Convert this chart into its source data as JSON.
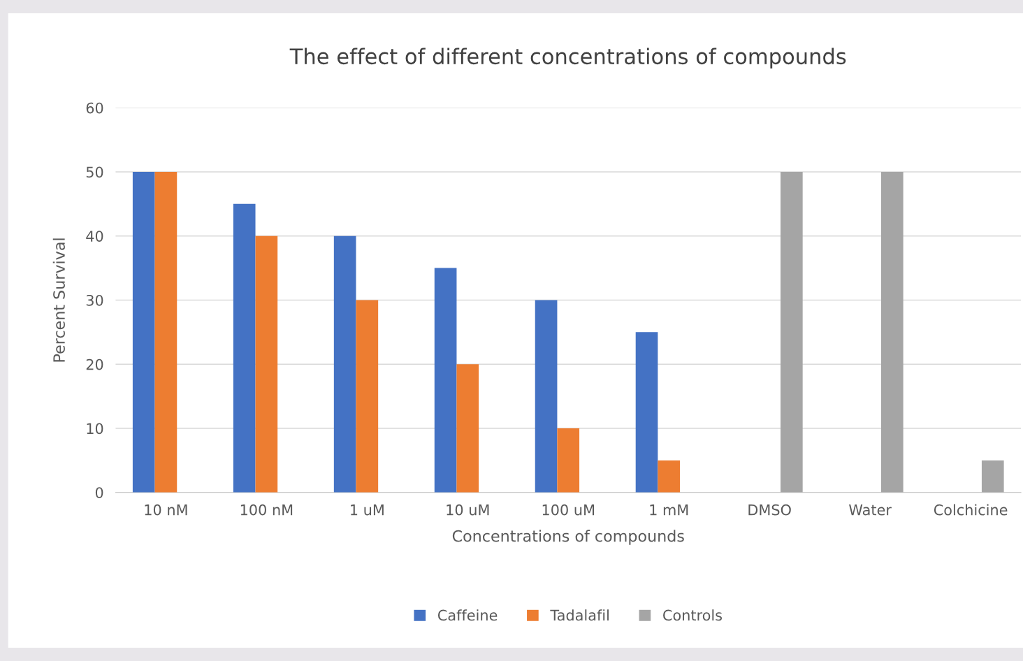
{
  "chart_data": {
    "type": "bar",
    "title": "The effect of different concentrations of compounds",
    "xlabel": "Concentrations of compounds",
    "ylabel": "Percent Survival",
    "categories": [
      "10 nM",
      "100 nM",
      "1 uM",
      "10 uM",
      "100 uM",
      "1 mM",
      "DMSO",
      "Water",
      "Colchicine"
    ],
    "series": [
      {
        "name": "Caffeine",
        "color": "#4472c4",
        "values": [
          50,
          45,
          40,
          35,
          30,
          25,
          null,
          null,
          null
        ]
      },
      {
        "name": "Tadalafil",
        "color": "#ed7d31",
        "values": [
          50,
          40,
          30,
          20,
          10,
          5,
          null,
          null,
          null
        ]
      },
      {
        "name": "Controls",
        "color": "#a5a5a5",
        "values": [
          null,
          null,
          null,
          null,
          null,
          null,
          50,
          50,
          5
        ]
      }
    ],
    "ylim": [
      0,
      60
    ],
    "yticks": [
      0,
      10,
      20,
      30,
      40,
      50,
      60
    ],
    "grid": "y",
    "legend": "bottom"
  }
}
